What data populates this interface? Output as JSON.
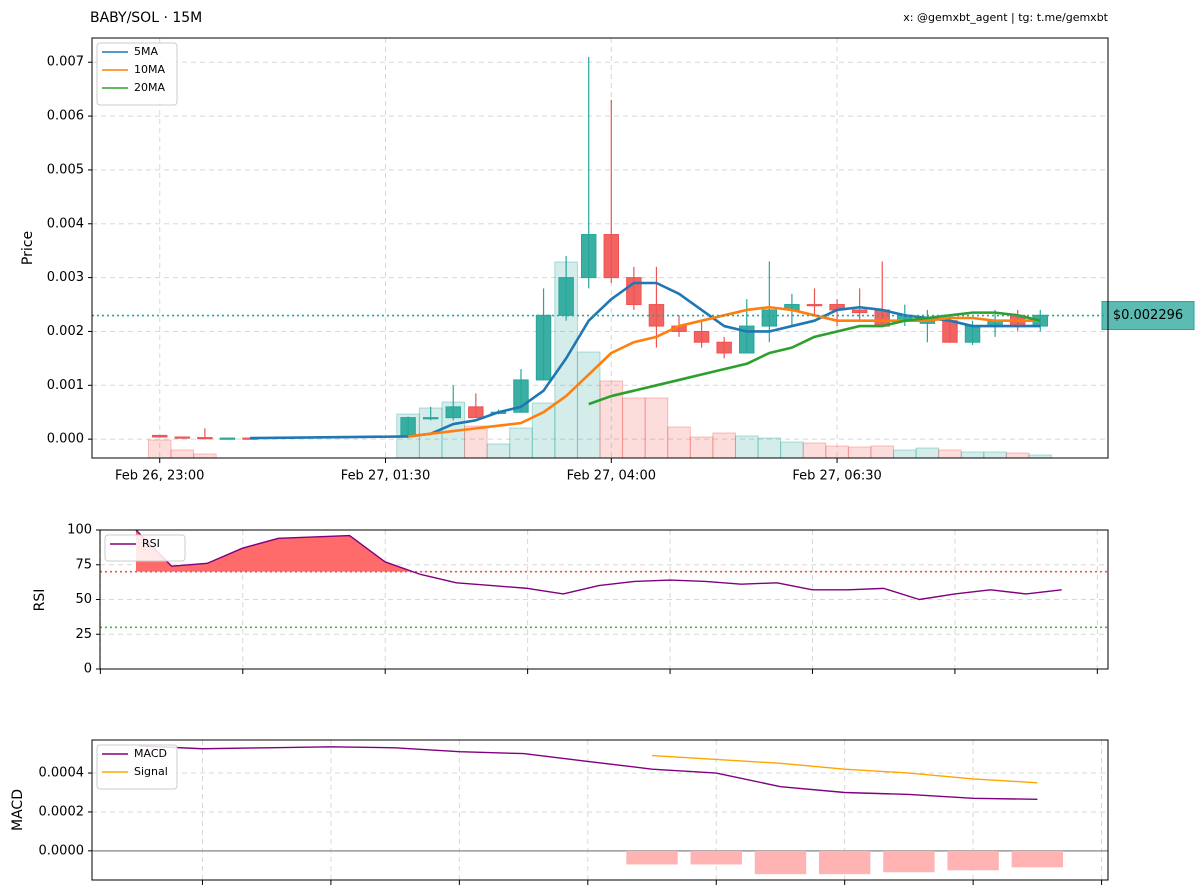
{
  "chart_data": [
    {
      "type": "candlestick",
      "title": "BABY/SOL · 15M",
      "subtitle": "x: @gemxbt_agent | tg: t.me/gemxbt",
      "ylabel": "Price",
      "x": [
        "Feb 26, 23:00",
        "Feb 26, 23:15",
        "Feb 26, 23:30",
        "Feb 26, 23:45",
        "Feb 27, 00:00",
        "Feb 27, 01:45",
        "Feb 27, 02:00",
        "Feb 27, 02:15",
        "Feb 27, 02:30",
        "Feb 27, 02:45",
        "Feb 27, 03:00",
        "Feb 27, 03:15",
        "Feb 27, 03:30",
        "Feb 27, 03:45",
        "Feb 27, 04:00",
        "Feb 27, 04:15",
        "Feb 27, 04:30",
        "Feb 27, 04:45",
        "Feb 27, 05:00",
        "Feb 27, 05:15",
        "Feb 27, 05:30",
        "Feb 27, 05:45",
        "Feb 27, 06:00",
        "Feb 27, 06:15",
        "Feb 27, 06:30",
        "Feb 27, 06:45",
        "Feb 27, 07:00",
        "Feb 27, 07:15",
        "Feb 27, 07:30",
        "Feb 27, 07:45",
        "Feb 27, 08:00",
        "Feb 27, 08:15",
        "Feb 27, 08:30",
        "Feb 27, 08:45"
      ],
      "open": [
        7e-05,
        4e-05,
        3e-05,
        1e-05,
        2e-05,
        5e-05,
        0.00038,
        0.0004,
        0.0006,
        0.00048,
        0.0005,
        0.0011,
        0.0023,
        0.003,
        0.0038,
        0.003,
        0.0025,
        0.0021,
        0.002,
        0.0018,
        0.0016,
        0.0021,
        0.0024,
        0.0025,
        0.0025,
        0.0024,
        0.0024,
        0.0022,
        0.00215,
        0.0022,
        0.0018,
        0.0021,
        0.0023,
        0.0021
      ],
      "high": [
        8e-05,
        5e-05,
        0.0002,
        2e-05,
        2e-05,
        0.00042,
        0.0006,
        0.001,
        0.00085,
        0.00055,
        0.0013,
        0.0028,
        0.0034,
        0.0071,
        0.0063,
        0.0032,
        0.0032,
        0.0023,
        0.0022,
        0.0019,
        0.0026,
        0.0033,
        0.0027,
        0.0028,
        0.0026,
        0.0028,
        0.0033,
        0.0025,
        0.0024,
        0.0023,
        0.0022,
        0.0024,
        0.0024,
        0.0024
      ],
      "low": [
        3e-05,
        1e-05,
        1e-05,
        1e-05,
        1e-05,
        2e-05,
        0.00035,
        0.00035,
        0.0004,
        0.00046,
        0.0005,
        0.0011,
        0.0022,
        0.0028,
        0.0029,
        0.0024,
        0.0017,
        0.0019,
        0.0017,
        0.0015,
        0.0016,
        0.0018,
        0.0021,
        0.0023,
        0.0021,
        0.0022,
        0.0021,
        0.0021,
        0.0018,
        0.0018,
        0.00175,
        0.0019,
        0.002,
        0.002
      ],
      "close": [
        4e-05,
        2e-05,
        1e-05,
        2e-05,
        1e-05,
        0.0004,
        0.0004,
        0.0006,
        0.0004,
        0.0005,
        0.0011,
        0.0023,
        0.003,
        0.0038,
        0.003,
        0.0025,
        0.0021,
        0.002,
        0.0018,
        0.0016,
        0.0021,
        0.0024,
        0.0025,
        0.00248,
        0.0024,
        0.00235,
        0.0021,
        0.0023,
        0.0022,
        0.0018,
        0.0021,
        0.0022,
        0.0021,
        0.0023
      ],
      "volume": [
        18,
        8,
        4,
        0,
        0,
        44,
        50,
        56,
        32,
        14,
        30,
        55,
        196,
        106,
        77,
        60,
        60,
        31,
        21,
        25,
        22,
        20,
        16,
        15,
        12,
        11,
        12,
        8,
        10,
        8,
        6,
        6,
        5,
        3
      ],
      "volume_lim": [
        0,
        420
      ],
      "up_color": "#26a69a",
      "down_color": "#ef5350",
      "series": [
        {
          "name": "5MA",
          "color": "#1f77b4",
          "values": [
            null,
            null,
            null,
            null,
            2e-05,
            5e-05,
            0.0001,
            0.00028,
            0.00035,
            0.0005,
            0.0006,
            0.0009,
            0.0015,
            0.0022,
            0.0026,
            0.0029,
            0.0029,
            0.0027,
            0.0024,
            0.0021,
            0.002,
            0.002,
            0.0021,
            0.0022,
            0.0024,
            0.00245,
            0.0024,
            0.0023,
            0.00225,
            0.0022,
            0.0021,
            0.0021,
            0.0021,
            0.0021
          ]
        },
        {
          "name": "10MA",
          "color": "#ff7f0e",
          "values": [
            null,
            null,
            null,
            null,
            null,
            5e-05,
            0.0001,
            0.00015,
            0.0002,
            0.00025,
            0.0003,
            0.0005,
            0.0008,
            0.0012,
            0.0016,
            0.0018,
            0.0019,
            0.0021,
            0.0022,
            0.0023,
            0.0024,
            0.00245,
            0.0024,
            0.0023,
            0.0022,
            0.0022,
            0.0022,
            0.0022,
            0.0022,
            0.00225,
            0.00225,
            0.0022,
            0.0022,
            0.0022
          ]
        },
        {
          "name": "20MA",
          "color": "#2ca02c",
          "values": [
            null,
            null,
            null,
            null,
            null,
            null,
            null,
            null,
            null,
            null,
            null,
            null,
            null,
            0.00065,
            0.0008,
            0.0009,
            0.001,
            0.0011,
            0.0012,
            0.0013,
            0.0014,
            0.0016,
            0.0017,
            0.0019,
            0.002,
            0.0021,
            0.0021,
            0.0022,
            0.00225,
            0.0023,
            0.00235,
            0.00235,
            0.0023,
            0.0022
          ]
        }
      ],
      "last_price": 0.002296,
      "last_price_label": "$0.002296",
      "last_price_color": "#26a69a",
      "xlim": [
        "Feb 26, 22:15",
        "Feb 27, 09:30"
      ],
      "xticks": [
        "Feb 26, 23:00",
        "Feb 27, 01:30",
        "Feb 27, 04:00",
        "Feb 27, 06:30"
      ],
      "ylim": [
        -0.00035,
        0.00745
      ],
      "yticks": [
        {
          "value": 0,
          "label": "0.000"
        },
        0.001,
        0.002,
        0.003,
        0.004,
        0.005,
        0.006,
        0.007
      ],
      "grid": true,
      "legend": "upper left"
    },
    {
      "type": "line",
      "ylabel": "RSI",
      "x": [
        0,
        1,
        2,
        3,
        4,
        6,
        7,
        8,
        9,
        10,
        11,
        12,
        13,
        14,
        15,
        16,
        17,
        18,
        19,
        20,
        21,
        22,
        23,
        24,
        25,
        26
      ],
      "series": [
        {
          "name": "RSI",
          "color": "#800080",
          "values": [
            100,
            74,
            76,
            87,
            94,
            96,
            77,
            68,
            62,
            60,
            58,
            54,
            60,
            63,
            64,
            63,
            61,
            62,
            57,
            57,
            58,
            50,
            54,
            57,
            54,
            57
          ]
        }
      ],
      "overbought": 70,
      "oversold": 30,
      "overbought_color": "#ef5350",
      "oversold_color": "#4caf50",
      "fill_color": "#ff5a5a",
      "xlim": [
        -1.01,
        27.3
      ],
      "xticks": [
        -1,
        3,
        7,
        11,
        15,
        19,
        23,
        27
      ],
      "show_xtick_labels": false,
      "ylim": [
        0,
        100
      ],
      "yticks": [
        0,
        25,
        50,
        75,
        100
      ],
      "grid": true,
      "legend": "upper left"
    },
    {
      "type": "macd",
      "ylabel": "MACD",
      "x": [
        0,
        1,
        2,
        3,
        4,
        5,
        6,
        7,
        8,
        9,
        10,
        11,
        12,
        13,
        14
      ],
      "series": [
        {
          "name": "MACD",
          "color": "#800080",
          "values": [
            0.00054,
            0.000525,
            0.00053,
            0.000535,
            0.00053,
            0.00051,
            0.0005,
            0.00046,
            0.00042,
            0.0004,
            0.00033,
            0.0003,
            0.00029,
            0.00027,
            0.000265
          ]
        },
        {
          "name": "Signal",
          "color": "#ffa500",
          "values": [
            null,
            null,
            null,
            null,
            null,
            null,
            null,
            null,
            0.00049,
            0.00047,
            0.00045,
            0.00042,
            0.0004,
            0.00037,
            0.00035
          ]
        }
      ],
      "histogram": {
        "color": "#ffb3b3",
        "values": [
          null,
          null,
          null,
          null,
          null,
          null,
          null,
          null,
          -7e-05,
          -7e-05,
          -0.00012,
          -0.00012,
          -0.00011,
          -0.0001,
          -8.5e-05
        ]
      },
      "xlim": [
        -0.72,
        15.1
      ],
      "xticks": [
        1,
        3,
        5,
        7,
        9,
        11,
        13,
        15
      ],
      "show_xtick_labels": false,
      "ylim": [
        -0.00015,
        0.00057
      ],
      "yticks": [
        {
          "value": 0,
          "label": "0.0000"
        },
        {
          "value": 0.0002,
          "label": "0.0002"
        },
        {
          "value": 0.0004,
          "label": "0.0004"
        }
      ],
      "grid": true,
      "legend": "upper left"
    }
  ]
}
